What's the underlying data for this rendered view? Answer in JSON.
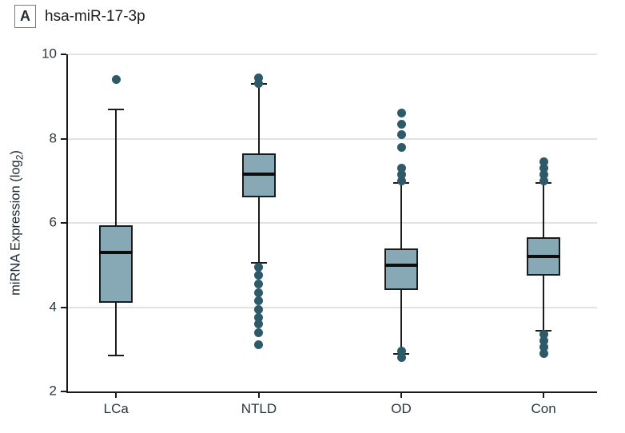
{
  "panel": {
    "label": "A",
    "title": "hsa-miR-17-3p"
  },
  "colors": {
    "box_fill": "#87a9b5",
    "box_border": "#1b1b1b",
    "dot": "#2e5968",
    "grid": "#e2e2e2",
    "axis": "#1a1a1a",
    "text": "#2b3740"
  },
  "y_axis": {
    "label_prefix": "miRNA Expression (log",
    "label_sub": "2",
    "label_suffix": ")"
  },
  "chart_data": {
    "type": "boxplot",
    "title": "hsa-miR-17-3p",
    "ylabel": "miRNA Expression (log2)",
    "ylim": [
      2,
      10
    ],
    "yticks": [
      2,
      4,
      6,
      8,
      10
    ],
    "grid": true,
    "legend_position": "none",
    "categories": [
      "LCa",
      "NTLD",
      "OD",
      "Con"
    ],
    "boxes": [
      {
        "category": "LCa",
        "whisker_high": 8.7,
        "q3": 5.95,
        "median": 5.3,
        "q1": 4.1,
        "whisker_low": 2.85,
        "outliers_high": [
          9.4
        ],
        "outliers_low": []
      },
      {
        "category": "NTLD",
        "whisker_high": 9.3,
        "q3": 7.65,
        "median": 7.15,
        "q1": 6.6,
        "whisker_low": 5.05,
        "outliers_high": [
          9.45,
          9.3
        ],
        "outliers_low": [
          4.95,
          4.75,
          4.55,
          4.35,
          4.15,
          3.95,
          3.75,
          3.6,
          3.4,
          3.1
        ]
      },
      {
        "category": "OD",
        "whisker_high": 6.95,
        "q3": 5.4,
        "median": 5.0,
        "q1": 4.4,
        "whisker_low": 2.9,
        "outliers_high": [
          8.6,
          8.35,
          8.1,
          7.8,
          7.3,
          7.15,
          7.0
        ],
        "outliers_low": [
          2.95,
          2.8
        ]
      },
      {
        "category": "Con",
        "whisker_high": 6.95,
        "q3": 5.65,
        "median": 5.2,
        "q1": 4.75,
        "whisker_low": 3.45,
        "outliers_high": [
          7.45,
          7.3,
          7.15,
          7.0
        ],
        "outliers_low": [
          3.35,
          3.2,
          3.05,
          2.9
        ]
      }
    ]
  }
}
